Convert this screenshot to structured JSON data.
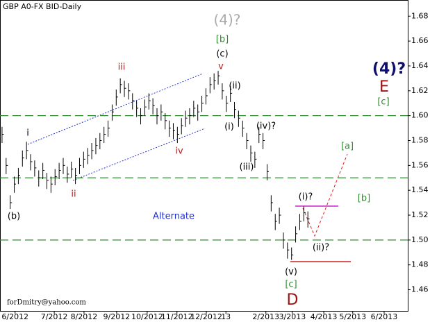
{
  "chart_data": {
    "type": "ohlc",
    "title": "GBP A0-FX BID-Daily",
    "x": [
      0.5,
      1.5,
      2.5,
      3.5,
      4.5,
      5.5,
      6.5,
      7.5,
      8.5,
      9.5,
      10.5,
      11.5,
      12.5,
      13.5,
      14.5,
      15.5,
      16.5,
      17.5,
      18.5,
      19.5,
      20.5,
      21.5,
      22.5,
      23.5,
      24.5,
      25.5,
      26.5,
      27.5,
      28.5,
      29.5,
      30.5,
      31.5,
      32.5,
      33.5,
      34.5,
      35.5,
      36.5,
      37.5,
      38.5,
      39.5,
      40.5,
      41.5,
      42.5,
      43.5,
      44.5,
      45.5,
      46.5,
      47.5,
      48.5,
      49.5,
      50.5,
      51.5,
      52.5,
      53.5,
      54.5,
      55.5,
      56.5,
      57.5,
      58.5,
      59.5,
      60.5,
      61.5,
      62.5,
      63.5,
      64.5,
      65.5,
      66.5,
      67.5,
      68.5,
      69.5,
      70.5,
      71.5,
      72.5,
      73.5,
      74.5,
      75.5
    ],
    "high": [
      1.591,
      1.566,
      1.536,
      1.551,
      1.558,
      1.572,
      1.579,
      1.569,
      1.564,
      1.556,
      1.562,
      1.554,
      1.551,
      1.557,
      1.562,
      1.566,
      1.559,
      1.563,
      1.558,
      1.566,
      1.571,
      1.574,
      1.578,
      1.582,
      1.586,
      1.591,
      1.596,
      1.609,
      1.621,
      1.63,
      1.628,
      1.626,
      1.618,
      1.612,
      1.606,
      1.613,
      1.618,
      1.614,
      1.606,
      1.609,
      1.602,
      1.596,
      1.594,
      1.591,
      1.598,
      1.604,
      1.606,
      1.612,
      1.609,
      1.616,
      1.622,
      1.631,
      1.634,
      1.636,
      1.626,
      1.616,
      1.624,
      1.611,
      1.604,
      1.596,
      1.586,
      1.576,
      1.571,
      1.591,
      1.586,
      1.561,
      1.536,
      1.521,
      1.526,
      1.506,
      1.498,
      1.494,
      1.511,
      1.521,
      1.527,
      1.523
    ],
    "low": [
      1.578,
      1.553,
      1.525,
      1.538,
      1.545,
      1.559,
      1.565,
      1.556,
      1.551,
      1.543,
      1.549,
      1.541,
      1.538,
      1.544,
      1.549,
      1.553,
      1.546,
      1.55,
      1.545,
      1.553,
      1.558,
      1.561,
      1.565,
      1.569,
      1.573,
      1.578,
      1.583,
      1.596,
      1.608,
      1.618,
      1.615,
      1.613,
      1.605,
      1.599,
      1.593,
      1.6,
      1.605,
      1.601,
      1.593,
      1.596,
      1.589,
      1.583,
      1.581,
      1.578,
      1.585,
      1.591,
      1.593,
      1.599,
      1.596,
      1.603,
      1.609,
      1.618,
      1.621,
      1.625,
      1.613,
      1.603,
      1.611,
      1.598,
      1.591,
      1.583,
      1.573,
      1.563,
      1.558,
      1.578,
      1.573,
      1.548,
      1.523,
      1.508,
      1.513,
      1.493,
      1.485,
      1.484,
      1.498,
      1.508,
      1.515,
      1.51
    ],
    "close": [
      1.585,
      1.56,
      1.53,
      1.545,
      1.552,
      1.566,
      1.572,
      1.563,
      1.558,
      1.55,
      1.556,
      1.548,
      1.545,
      1.551,
      1.556,
      1.56,
      1.553,
      1.557,
      1.552,
      1.56,
      1.565,
      1.568,
      1.572,
      1.576,
      1.58,
      1.585,
      1.59,
      1.603,
      1.615,
      1.625,
      1.622,
      1.62,
      1.612,
      1.606,
      1.6,
      1.607,
      1.612,
      1.608,
      1.6,
      1.603,
      1.596,
      1.59,
      1.588,
      1.585,
      1.592,
      1.598,
      1.6,
      1.606,
      1.603,
      1.61,
      1.616,
      1.625,
      1.628,
      1.632,
      1.62,
      1.61,
      1.618,
      1.605,
      1.598,
      1.59,
      1.58,
      1.57,
      1.565,
      1.585,
      1.58,
      1.555,
      1.53,
      1.515,
      1.52,
      1.5,
      1.492,
      1.488,
      1.505,
      1.515,
      1.522,
      1.517
    ],
    "color": "#000000",
    "xlim": [
      0,
      100
    ],
    "xticks": [
      {
        "value": 3.7,
        "label": "6/2012"
      },
      {
        "value": 13.3,
        "label": "7/2012"
      },
      {
        "value": 20.6,
        "label": "8/2012"
      },
      {
        "value": 28.6,
        "label": "9/2012"
      },
      {
        "value": 36.1,
        "label": "10/2012"
      },
      {
        "value": 43.4,
        "label": "11/2012"
      },
      {
        "value": 50.6,
        "label": "12/2012"
      },
      {
        "value": 55.4,
        "label": "13"
      },
      {
        "value": 65.2,
        "label": "2/2013"
      },
      {
        "value": 71.7,
        "label": "3/2013"
      },
      {
        "value": 79.4,
        "label": "4/2013"
      },
      {
        "value": 86.5,
        "label": "5/2013"
      },
      {
        "value": 94.2,
        "label": "6/2013"
      }
    ],
    "ylim": [
      1.443,
      1.693
    ],
    "yticks": [
      1.46,
      1.48,
      {
        "value": 1.5,
        "label": "1.50"
      },
      1.52,
      1.54,
      1.56,
      1.58,
      {
        "value": 1.6,
        "label": "1.60"
      },
      1.62,
      1.64,
      1.66,
      1.68
    ],
    "reference_lines": [
      1.6,
      1.55,
      1.5
    ],
    "reference_color": "#2e8b2e",
    "annotations": [
      "(4)?",
      "[b]",
      "(c)",
      "v",
      "(ii)",
      "iii",
      "i",
      "ii",
      "(b)",
      "iv",
      "(i)",
      "(iv)?",
      "(iii)",
      "(i)?",
      "(ii)?",
      "(v)",
      "[c]",
      "D",
      "(4)?",
      "E",
      "[c]",
      "[a]",
      "[b]",
      "Alternate",
      "forDmitry@yahoo.com"
    ]
  }
}
